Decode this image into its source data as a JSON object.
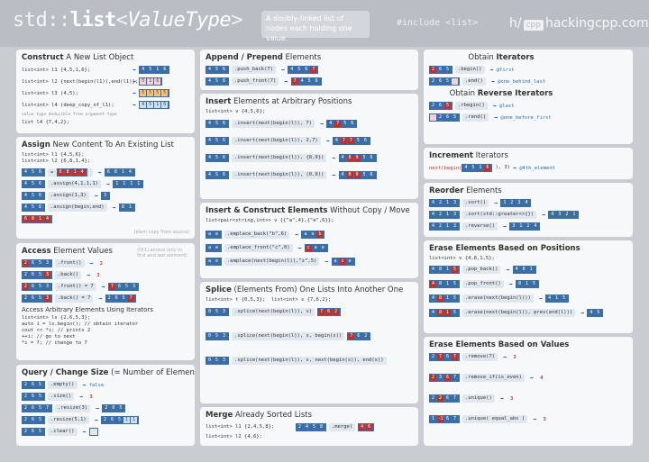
{
  "header": {
    "title_prefix": "std::",
    "title_list": "list",
    "title_open": "<",
    "title_type": "ValueType",
    "title_close": ">",
    "subtitle": "A doubly-linked list of nodes each holding one value.",
    "include": "#include <list>",
    "brand_h": "h",
    "brand_cpp": "cpp",
    "brand_site": "hackingcpp.com"
  },
  "construct": {
    "title_bold": "Construct",
    "title_rest": " A New List Object",
    "rows": [
      "list<int> l1 {4,5,1,6};",
      "list<int> l2 {next(begin(l1)),end(l1)};",
      "list<int> l3 (4,5);",
      "list<int> l4 (deep_copy_of_l1);"
    ],
    "note": "value type deducible from argument type",
    "ctad": "list   l4 {7,4,2};"
  },
  "assign": {
    "title_bold": "Assign",
    "title_rest": " New Content To An Existing List",
    "decl1": "list<int> l1 {4,5,6};",
    "decl2": "list<int> l2 {6,8,1,4};",
    "calls": [
      ".assign(4,1,1,1)",
      ".assign(1,3)",
      ".assign(begin,end)"
    ],
    "note": "(elem copy from source)"
  },
  "access": {
    "title_bold": "Access",
    "title_rest": " Element Values",
    "calls": [
      ".front()",
      ".back()",
      ".front() = 7",
      ".back() = 7"
    ],
    "vals": [
      "2",
      "3",
      "7",
      "7"
    ],
    "iter_title": "Access Arbitrary Elements Using Iterators",
    "code": [
      "list<int> ls {2,6,5,3};",
      "auto i = ls.begin();   // obtain iterator",
      "cout << *i;            // prints 2",
      "++i;                   // go to next",
      "*i = 7;                // change to 7"
    ],
    "note": "(O(1) access only to first and last element)"
  },
  "size": {
    "title_bold": "Query / Change Size",
    "title_rest": " (= Number of Elements)",
    "calls": [
      ".empty()",
      ".size()",
      ".resize(3)",
      ".resize(5,1)",
      ".clear()"
    ],
    "vals": [
      "false",
      "3",
      "",
      "",
      ""
    ]
  },
  "append": {
    "title_bold": "Append / Prepend",
    "title_rest": " Elements",
    "calls": [
      ".push_back(7)",
      ".push_front(7)"
    ]
  },
  "insert": {
    "title_bold": "Insert",
    "title_rest": " Elements at Arbitrary Positions",
    "decl": "list<int> v {4,5,6};",
    "calls": [
      ".insert(next(begin(l)), 7)",
      ".insert(next(begin(l)), 2,7)",
      ".insert(next(begin(l)), {8,9})",
      ".insert(next(begin(l)), (0,9))"
    ]
  },
  "emplace": {
    "title_bold": "Insert & Construct Elements",
    "title_rest": " Without Copy / Move",
    "decl": "list<pair<string,int>> v {{\"a\",4},{\"e\",6}};",
    "calls": [
      ".emplace_back(\"b\",6)",
      ".emplace_front(\"c\",0)",
      ".emplace(next(begin(l)),\"z\",5)"
    ]
  },
  "splice": {
    "title_bold": "Splice",
    "title_rest": " (Elements From) One Lists Into Another One",
    "decl1": "list<int> t {0,5,3};",
    "decl2": "list<int> s {7,6,2};",
    "calls": [
      ".splice(next(begin(l)), s)",
      ".splice(next(begin(l)), s, begin(s))",
      ".splice(next(begin(l)), s, next(begin(s)), end(s))"
    ]
  },
  "merge": {
    "title_bold": "Merge",
    "title_rest": " Already Sorted Lists",
    "decl1": "list<int> l1 {2,4,5,8};",
    "decl2": "list<int> l2 {4,6};",
    "call": ".merge("
  },
  "iterators": {
    "title_bold": "Iterators",
    "title_pre": "Obtain ",
    "calls": [
      ".begin()",
      ".end()"
    ],
    "notes": [
      "@first",
      "@one_behind_last"
    ],
    "rev_pre": "Obtain ",
    "rev_bold": "Reverse Iterators",
    "rev_calls": [
      ".rbegin()",
      ".rend()"
    ],
    "rev_notes": [
      "@last",
      "@one_before_first"
    ]
  },
  "increment": {
    "title_bold": "Increment",
    "title_rest": " Iterators",
    "code": "next(begin(",
    "note": "@4th_element"
  },
  "reorder": {
    "title_bold": "Reorder",
    "title_rest": " Elements",
    "calls": [
      ".sort()",
      ".sort(std::greater<>{})",
      ".reverse()"
    ]
  },
  "erase_pos": {
    "title_bold": "Erase Elements Based on Positions",
    "decl": "list<int> v {4,8,1,5};",
    "calls": [
      ".pop_back()",
      ".pop_front()",
      ".erase(next(begin(l)))",
      ".erase(next(begin(l)), prev(end(l)))"
    ]
  },
  "erase_val": {
    "title_bold": "Erase Elements Based on Values",
    "calls": [
      ".remove(7)",
      ".remove_if(is_even)",
      ".unique()",
      ".unique( equal_abs )"
    ],
    "counts": [
      "3",
      "4",
      "3",
      "3"
    ]
  }
}
